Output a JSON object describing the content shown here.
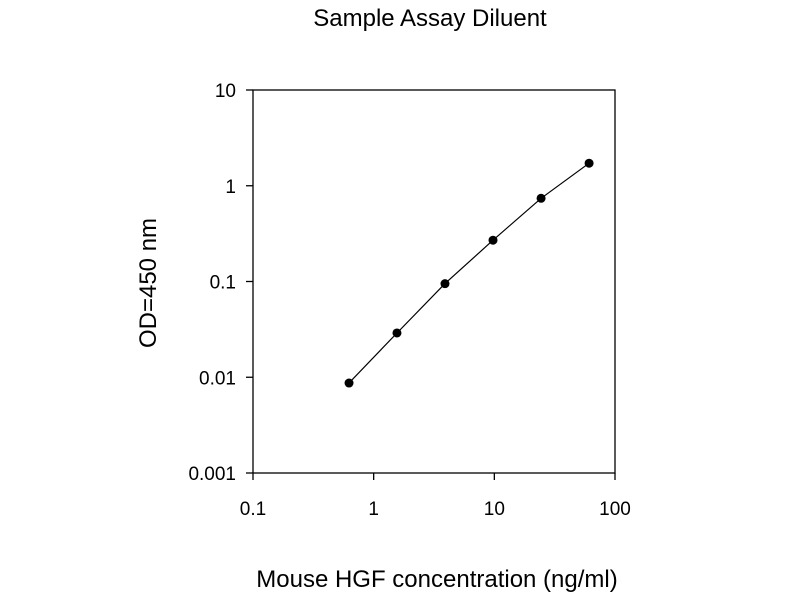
{
  "chart_data": {
    "type": "line",
    "title": "Sample Assay Diluent",
    "xlabel": "Mouse HGF concentration (ng/ml)",
    "ylabel": "OD=450 nm",
    "xscale": "log",
    "yscale": "log",
    "xlim": [
      0.1,
      100
    ],
    "ylim": [
      0.001,
      10
    ],
    "x_ticks": [
      "0.1",
      "1",
      "10",
      "100"
    ],
    "y_ticks": [
      "0.001",
      "0.01",
      "0.1",
      "1",
      "10"
    ],
    "grid": false,
    "legend": "none",
    "series": [
      {
        "x": [
          0.625,
          1.56,
          3.9,
          9.75,
          24.4,
          61
        ],
        "y": [
          0.0087,
          0.029,
          0.095,
          0.27,
          0.74,
          1.72
        ],
        "color": "#000000",
        "marker": "circle"
      }
    ]
  }
}
